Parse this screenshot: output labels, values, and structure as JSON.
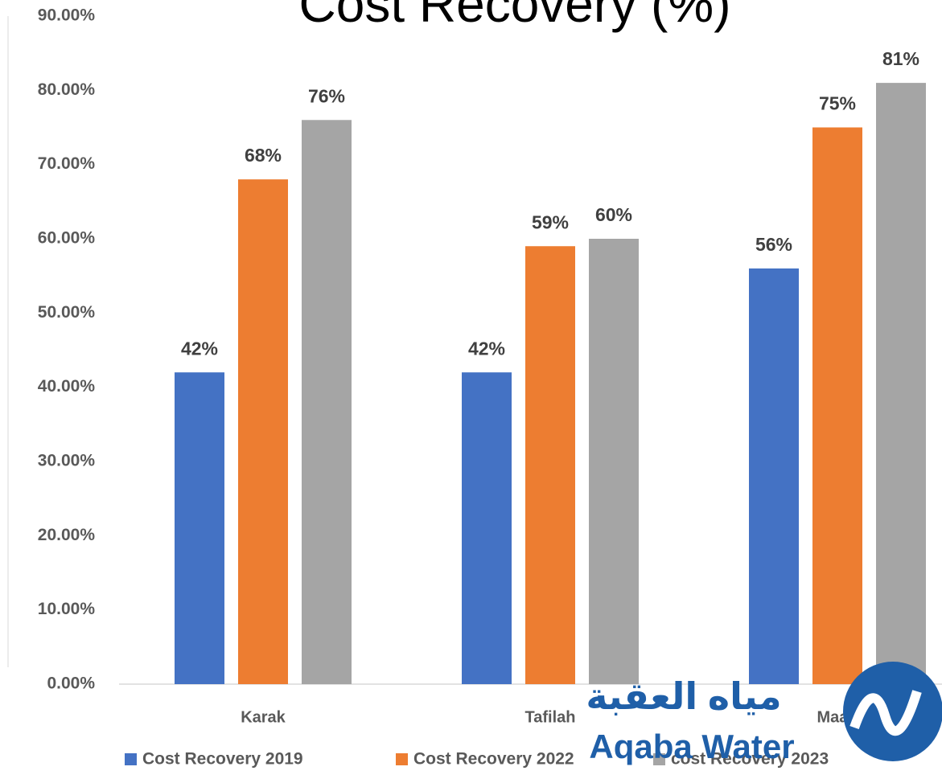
{
  "chart_data": {
    "type": "bar",
    "title": "Cost Recovery (%)",
    "categories": [
      "Karak",
      "Tafilah",
      "Maan"
    ],
    "series": [
      {
        "name": "Cost Recovery 2019",
        "color": "#4472c4",
        "values": [
          42,
          42,
          56
        ],
        "value_labels": [
          "42%",
          "42%",
          "56%"
        ]
      },
      {
        "name": "Cost Recovery 2022",
        "color": "#ed7d31",
        "values": [
          68,
          59,
          75
        ],
        "value_labels": [
          "68%",
          "59%",
          "75%"
        ]
      },
      {
        "name": "cost Recovery 2023",
        "color": "#a5a5a5",
        "values": [
          76,
          60,
          81
        ],
        "value_labels": [
          "76%",
          "60%",
          "81%"
        ]
      }
    ],
    "ylim": [
      0,
      90
    ],
    "yticks": [
      {
        "value": 0,
        "label": "0.00%"
      },
      {
        "value": 10,
        "label": "10.00%"
      },
      {
        "value": 20,
        "label": "20.00%"
      },
      {
        "value": 30,
        "label": "30.00%"
      },
      {
        "value": 40,
        "label": "40.00%"
      },
      {
        "value": 50,
        "label": "50.00%"
      },
      {
        "value": 60,
        "label": "60.00%"
      },
      {
        "value": 70,
        "label": "70.00%"
      },
      {
        "value": 80,
        "label": "80.00%"
      },
      {
        "value": 90,
        "label": "90.00%"
      }
    ],
    "grid": false,
    "legend": "bottom"
  },
  "watermark": {
    "arabic": "مياه العقبة",
    "english": "Aqaba Water"
  }
}
